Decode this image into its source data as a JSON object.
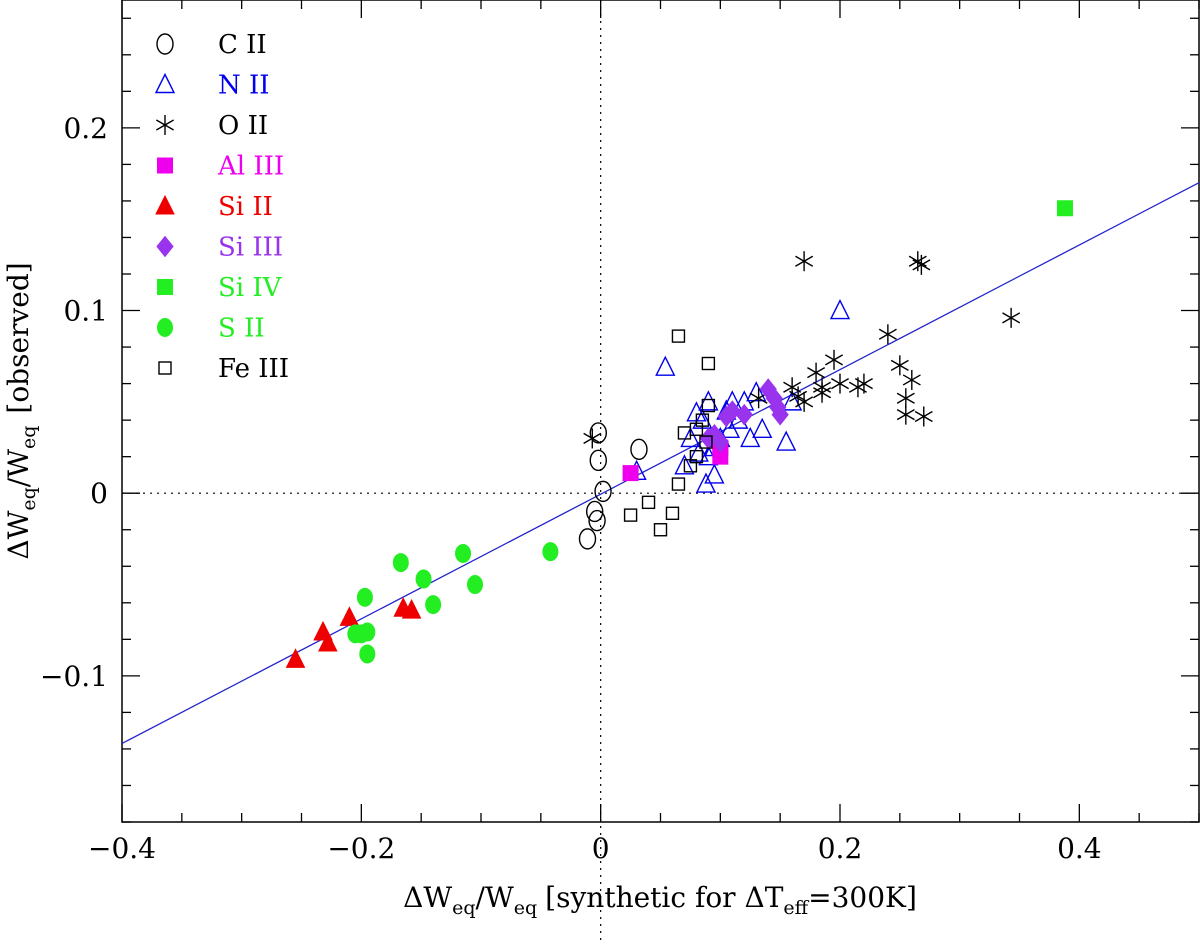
{
  "chart_data": {
    "type": "scatter",
    "title": "",
    "xlabel": {
      "prefix": "ΔW",
      "sub1": "eq",
      "mid": "/W",
      "sub2": "eq",
      "bracket": "[synthetic for ΔT",
      "sub3": "eff",
      "tail": "=300K]"
    },
    "ylabel": {
      "prefix": "ΔW",
      "sub1": "eq",
      "mid": "/W",
      "sub2": "eq",
      "tail": "[observed]"
    },
    "xlim": [
      -0.4,
      0.5
    ],
    "ylim": [
      -0.18,
      0.27
    ],
    "xticks": [
      -0.4,
      -0.2,
      0,
      0.2,
      0.4
    ],
    "xtick_labels": [
      "−0.4",
      "−0.2",
      "0",
      "0.2",
      "0.4"
    ],
    "yticks": [
      -0.1,
      0,
      0.1,
      0.2
    ],
    "ytick_labels": [
      "−0.1",
      "0",
      "0.1",
      "0.2"
    ],
    "reference_lines": {
      "x": 0,
      "y": 0,
      "style": "dotted"
    },
    "fit_line": {
      "x": [
        -0.4,
        0.5
      ],
      "y": [
        -0.137,
        0.17
      ],
      "color": "#2323cc"
    },
    "legend_position": "top-left",
    "series": [
      {
        "name": "C II",
        "marker": "circle-open",
        "color": "#000000",
        "points": [
          [
            -0.002,
            0.033
          ],
          [
            -0.002,
            0.018
          ],
          [
            0.002,
            0.001
          ],
          [
            -0.003,
            -0.015
          ],
          [
            -0.005,
            -0.01
          ],
          [
            -0.011,
            -0.025
          ],
          [
            0.032,
            0.024
          ]
        ]
      },
      {
        "name": "N II",
        "marker": "triangle-open",
        "color": "#0000ee",
        "points": [
          [
            0.054,
            0.069
          ],
          [
            0.08,
            0.044
          ],
          [
            0.085,
            0.04
          ],
          [
            0.09,
            0.05
          ],
          [
            0.095,
            0.025
          ],
          [
            0.1,
            0.03
          ],
          [
            0.075,
            0.03
          ],
          [
            0.07,
            0.015
          ],
          [
            0.09,
            0.02
          ],
          [
            0.095,
            0.01
          ],
          [
            0.088,
            0.005
          ],
          [
            0.105,
            0.045
          ],
          [
            0.11,
            0.05
          ],
          [
            0.115,
            0.04
          ],
          [
            0.12,
            0.05
          ],
          [
            0.125,
            0.03
          ],
          [
            0.13,
            0.055
          ],
          [
            0.135,
            0.035
          ],
          [
            0.16,
            0.05
          ],
          [
            0.155,
            0.028
          ],
          [
            0.108,
            0.035
          ],
          [
            0.2,
            0.1
          ],
          [
            0.082,
            0.022
          ],
          [
            0.03,
            0.012
          ]
        ]
      },
      {
        "name": "O II",
        "marker": "asterisk",
        "color": "#000000",
        "points": [
          [
            -0.007,
            0.03
          ],
          [
            0.132,
            0.052
          ],
          [
            0.16,
            0.058
          ],
          [
            0.165,
            0.053
          ],
          [
            0.17,
            0.05
          ],
          [
            0.18,
            0.066
          ],
          [
            0.185,
            0.055
          ],
          [
            0.195,
            0.073
          ],
          [
            0.2,
            0.06
          ],
          [
            0.215,
            0.058
          ],
          [
            0.22,
            0.06
          ],
          [
            0.24,
            0.087
          ],
          [
            0.25,
            0.07
          ],
          [
            0.255,
            0.052
          ],
          [
            0.255,
            0.043
          ],
          [
            0.26,
            0.062
          ],
          [
            0.27,
            0.042
          ],
          [
            0.17,
            0.127
          ],
          [
            0.265,
            0.127
          ],
          [
            0.268,
            0.125
          ],
          [
            0.343,
            0.096
          ],
          [
            0.185,
            0.058
          ]
        ]
      },
      {
        "name": "Al III",
        "marker": "square-filled",
        "color": "#ee00ee",
        "points": [
          [
            0.025,
            0.011
          ],
          [
            0.1,
            0.02
          ],
          [
            0.1,
            0.025
          ]
        ]
      },
      {
        "name": "Si II",
        "marker": "triangle-filled",
        "color": "#ee0000",
        "points": [
          [
            -0.255,
            -0.091
          ],
          [
            -0.232,
            -0.076
          ],
          [
            -0.228,
            -0.082
          ],
          [
            -0.21,
            -0.068
          ],
          [
            -0.165,
            -0.063
          ],
          [
            -0.158,
            -0.064
          ]
        ]
      },
      {
        "name": "Si III",
        "marker": "diamond-filled",
        "color": "#9933ee",
        "points": [
          [
            0.09,
            0.03
          ],
          [
            0.095,
            0.032
          ],
          [
            0.1,
            0.028
          ],
          [
            0.105,
            0.042
          ],
          [
            0.11,
            0.045
          ],
          [
            0.12,
            0.043
          ],
          [
            0.14,
            0.057
          ],
          [
            0.145,
            0.052
          ],
          [
            0.148,
            0.047
          ],
          [
            0.15,
            0.043
          ]
        ]
      },
      {
        "name": "Si IV",
        "marker": "square-filled",
        "color": "#22ee22",
        "points": [
          [
            0.388,
            0.156
          ]
        ]
      },
      {
        "name": "S II",
        "marker": "circle-filled",
        "color": "#22ee22",
        "points": [
          [
            -0.197,
            -0.057
          ],
          [
            -0.2,
            -0.077
          ],
          [
            -0.195,
            -0.076
          ],
          [
            -0.195,
            -0.088
          ],
          [
            -0.205,
            -0.077
          ],
          [
            -0.167,
            -0.038
          ],
          [
            -0.148,
            -0.047
          ],
          [
            -0.14,
            -0.061
          ],
          [
            -0.115,
            -0.033
          ],
          [
            -0.105,
            -0.05
          ],
          [
            -0.042,
            -0.032
          ]
        ]
      },
      {
        "name": "Fe III",
        "marker": "square-open",
        "color": "#000000",
        "points": [
          [
            0.065,
            0.086
          ],
          [
            0.09,
            0.071
          ],
          [
            0.07,
            0.033
          ],
          [
            0.08,
            0.035
          ],
          [
            0.085,
            0.04
          ],
          [
            0.08,
            0.02
          ],
          [
            0.075,
            0.015
          ],
          [
            0.09,
            0.048
          ],
          [
            0.065,
            0.005
          ],
          [
            0.025,
            -0.012
          ],
          [
            0.04,
            -0.005
          ],
          [
            0.05,
            -0.02
          ],
          [
            0.06,
            -0.011
          ],
          [
            0.088,
            0.028
          ]
        ]
      }
    ]
  }
}
